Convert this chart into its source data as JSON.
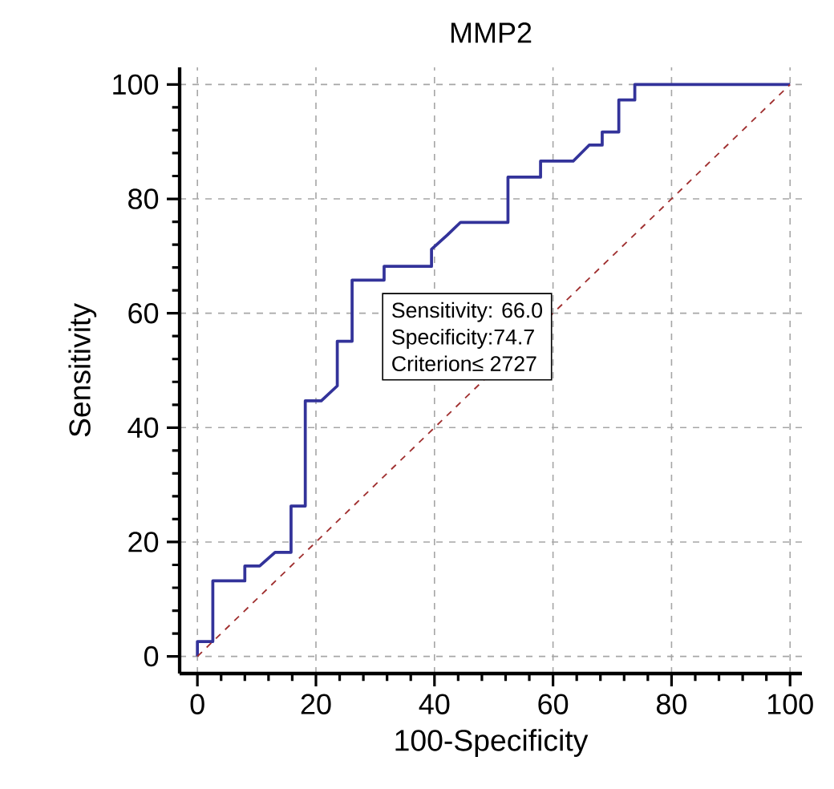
{
  "chart_data": {
    "type": "line",
    "title": "MMP2",
    "xlabel": "100-Specificity",
    "ylabel": "Sensitivity",
    "xlim": [
      -3,
      102
    ],
    "ylim": [
      -3,
      103
    ],
    "xticks": [
      0,
      20,
      40,
      60,
      80,
      100
    ],
    "yticks": [
      0,
      20,
      40,
      60,
      80,
      100
    ],
    "grid": true,
    "series": [
      {
        "color": "#33339a",
        "line_style": "solid",
        "x": [
          0,
          0,
          2.6,
          2.6,
          8.0,
          8.0,
          10.5,
          13.1,
          15.8,
          15.8,
          18.2,
          18.2,
          20.9,
          23.6,
          23.6,
          26.1,
          26.1,
          31.5,
          31.5,
          39.5,
          39.5,
          42.2,
          44.4,
          52.4,
          52.4,
          57.9,
          57.9,
          63.4,
          66.1,
          68.3,
          68.3,
          71.1,
          71.1,
          73.8,
          73.8,
          100
        ],
        "values": [
          0,
          2.6,
          2.6,
          13.2,
          13.2,
          15.8,
          15.8,
          18.2,
          18.2,
          26.3,
          26.3,
          44.7,
          44.7,
          47.3,
          55.1,
          55.1,
          65.8,
          65.8,
          68.2,
          68.2,
          71.2,
          73.7,
          75.9,
          75.9,
          83.8,
          83.8,
          86.6,
          86.6,
          89.4,
          89.4,
          91.7,
          91.7,
          97.3,
          97.3,
          100,
          100
        ]
      },
      {
        "color": "#a03030",
        "line_style": "dashed",
        "x": [
          0,
          100
        ],
        "values": [
          0,
          100
        ]
      }
    ],
    "annotations": [
      "Sensitivity: 66.0",
      "Specificity:74.7",
      "Criterion≤ 2727"
    ]
  }
}
